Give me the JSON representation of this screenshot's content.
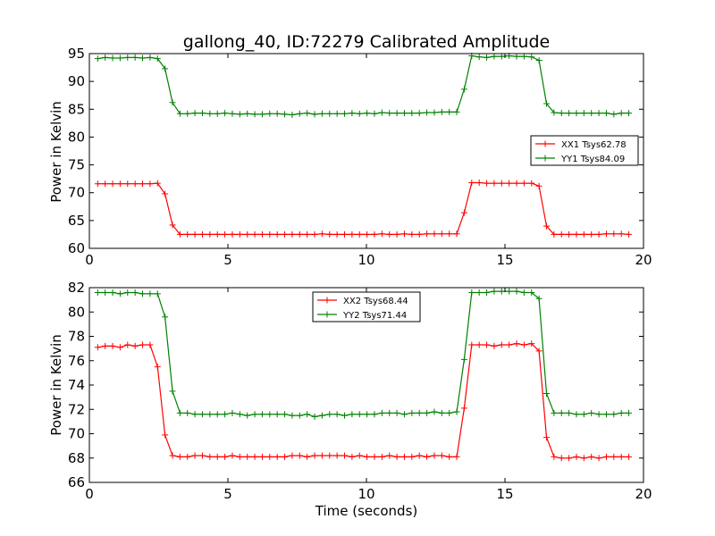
{
  "chart_data": [
    {
      "type": "line",
      "title": "gallong_40, ID:72279 Calibrated Amplitude",
      "xlabel": "",
      "ylabel": "Power in Kelvin",
      "xlim": [
        0,
        20
      ],
      "ylim": [
        60,
        95
      ],
      "xticks": [
        "0",
        "5",
        "10",
        "15",
        "20"
      ],
      "yticks": [
        "60",
        "65",
        "70",
        "75",
        "80",
        "85",
        "90",
        "95"
      ],
      "legend_position": "right",
      "x": [
        0.3,
        0.57,
        0.84,
        1.11,
        1.38,
        1.65,
        1.92,
        2.19,
        2.46,
        2.73,
        3.0,
        3.27,
        3.54,
        3.81,
        4.08,
        4.35,
        4.62,
        4.89,
        5.16,
        5.43,
        5.7,
        5.97,
        6.24,
        6.51,
        6.78,
        7.05,
        7.32,
        7.59,
        7.86,
        8.13,
        8.4,
        8.67,
        8.94,
        9.21,
        9.48,
        9.75,
        10.02,
        10.29,
        10.56,
        10.83,
        11.1,
        11.37,
        11.64,
        11.91,
        12.18,
        12.45,
        12.72,
        12.99,
        13.26,
        13.53,
        13.8,
        14.07,
        14.34,
        14.61,
        14.88,
        15.15,
        15.42,
        15.69,
        15.96,
        16.23,
        16.5,
        16.77,
        17.04,
        17.31,
        17.58,
        17.85,
        18.12,
        18.39,
        18.66,
        18.93,
        19.2,
        19.47
      ],
      "series": [
        {
          "name": "XX1 Tsys62.78",
          "color": "#ff0000",
          "values": [
            71.6,
            71.6,
            71.6,
            71.6,
            71.6,
            71.6,
            71.6,
            71.6,
            71.7,
            69.8,
            64.2,
            62.5,
            62.5,
            62.5,
            62.5,
            62.5,
            62.5,
            62.5,
            62.5,
            62.5,
            62.5,
            62.5,
            62.5,
            62.5,
            62.5,
            62.5,
            62.5,
            62.5,
            62.5,
            62.5,
            62.6,
            62.5,
            62.5,
            62.5,
            62.5,
            62.5,
            62.5,
            62.5,
            62.6,
            62.5,
            62.5,
            62.6,
            62.5,
            62.5,
            62.6,
            62.6,
            62.6,
            62.6,
            62.6,
            66.4,
            71.8,
            71.8,
            71.7,
            71.7,
            71.7,
            71.7,
            71.7,
            71.7,
            71.7,
            71.2,
            64.0,
            62.5,
            62.5,
            62.5,
            62.5,
            62.5,
            62.5,
            62.5,
            62.6,
            62.6,
            62.6,
            62.5
          ]
        },
        {
          "name": "YY1 Tsys84.09",
          "color": "#008000",
          "values": [
            94.1,
            94.3,
            94.2,
            94.2,
            94.3,
            94.3,
            94.2,
            94.3,
            94.1,
            92.3,
            86.2,
            84.2,
            84.2,
            84.3,
            84.3,
            84.2,
            84.2,
            84.3,
            84.2,
            84.1,
            84.2,
            84.1,
            84.1,
            84.2,
            84.2,
            84.1,
            84.0,
            84.2,
            84.3,
            84.1,
            84.2,
            84.2,
            84.2,
            84.2,
            84.3,
            84.2,
            84.3,
            84.2,
            84.4,
            84.3,
            84.3,
            84.3,
            84.3,
            84.3,
            84.4,
            84.4,
            84.5,
            84.5,
            84.5,
            88.6,
            94.6,
            94.4,
            94.3,
            94.5,
            94.5,
            94.6,
            94.5,
            94.5,
            94.4,
            93.8,
            86.0,
            84.4,
            84.3,
            84.3,
            84.3,
            84.3,
            84.3,
            84.3,
            84.3,
            84.1,
            84.3,
            84.3
          ]
        }
      ]
    },
    {
      "type": "line",
      "title": "",
      "xlabel": "Time (seconds)",
      "ylabel": "Power in Kelvin",
      "xlim": [
        0,
        20
      ],
      "ylim": [
        66,
        82
      ],
      "xticks": [
        "0",
        "5",
        "10",
        "15",
        "20"
      ],
      "yticks": [
        "66",
        "68",
        "70",
        "72",
        "74",
        "76",
        "78",
        "80",
        "82"
      ],
      "legend_position": "upper center",
      "x": [
        0.3,
        0.57,
        0.84,
        1.11,
        1.38,
        1.65,
        1.92,
        2.19,
        2.46,
        2.73,
        3.0,
        3.27,
        3.54,
        3.81,
        4.08,
        4.35,
        4.62,
        4.89,
        5.16,
        5.43,
        5.7,
        5.97,
        6.24,
        6.51,
        6.78,
        7.05,
        7.32,
        7.59,
        7.86,
        8.13,
        8.4,
        8.67,
        8.94,
        9.21,
        9.48,
        9.75,
        10.02,
        10.29,
        10.56,
        10.83,
        11.1,
        11.37,
        11.64,
        11.91,
        12.18,
        12.45,
        12.72,
        12.99,
        13.26,
        13.53,
        13.8,
        14.07,
        14.34,
        14.61,
        14.88,
        15.15,
        15.42,
        15.69,
        15.96,
        16.23,
        16.5,
        16.77,
        17.04,
        17.31,
        17.58,
        17.85,
        18.12,
        18.39,
        18.66,
        18.93,
        19.2,
        19.47
      ],
      "series": [
        {
          "name": "XX2 Tsys68.44",
          "color": "#ff0000",
          "values": [
            77.1,
            77.2,
            77.2,
            77.1,
            77.3,
            77.2,
            77.3,
            77.3,
            75.5,
            69.9,
            68.2,
            68.1,
            68.1,
            68.2,
            68.2,
            68.1,
            68.1,
            68.1,
            68.2,
            68.1,
            68.1,
            68.1,
            68.1,
            68.1,
            68.1,
            68.1,
            68.2,
            68.2,
            68.1,
            68.2,
            68.2,
            68.2,
            68.2,
            68.2,
            68.1,
            68.2,
            68.1,
            68.1,
            68.1,
            68.2,
            68.1,
            68.1,
            68.1,
            68.2,
            68.1,
            68.2,
            68.2,
            68.1,
            68.1,
            72.1,
            77.3,
            77.3,
            77.3,
            77.2,
            77.3,
            77.3,
            77.4,
            77.3,
            77.4,
            76.8,
            69.7,
            68.1,
            68.0,
            68.0,
            68.1,
            68.0,
            68.1,
            68.0,
            68.1,
            68.1,
            68.1,
            68.1
          ]
        },
        {
          "name": "YY2 Tsys71.44",
          "color": "#008000",
          "values": [
            81.6,
            81.6,
            81.6,
            81.5,
            81.6,
            81.6,
            81.5,
            81.5,
            81.5,
            79.6,
            73.5,
            71.7,
            71.7,
            71.6,
            71.6,
            71.6,
            71.6,
            71.6,
            71.7,
            71.6,
            71.5,
            71.6,
            71.6,
            71.6,
            71.6,
            71.6,
            71.5,
            71.5,
            71.6,
            71.4,
            71.5,
            71.6,
            71.6,
            71.5,
            71.6,
            71.6,
            71.6,
            71.6,
            71.7,
            71.7,
            71.7,
            71.6,
            71.7,
            71.7,
            71.7,
            71.8,
            71.7,
            71.7,
            71.8,
            76.1,
            81.6,
            81.6,
            81.6,
            81.7,
            81.7,
            81.7,
            81.7,
            81.6,
            81.6,
            81.1,
            73.3,
            71.7,
            71.7,
            71.7,
            71.6,
            71.6,
            71.7,
            71.6,
            71.6,
            71.6,
            71.7,
            71.7
          ]
        }
      ]
    }
  ]
}
